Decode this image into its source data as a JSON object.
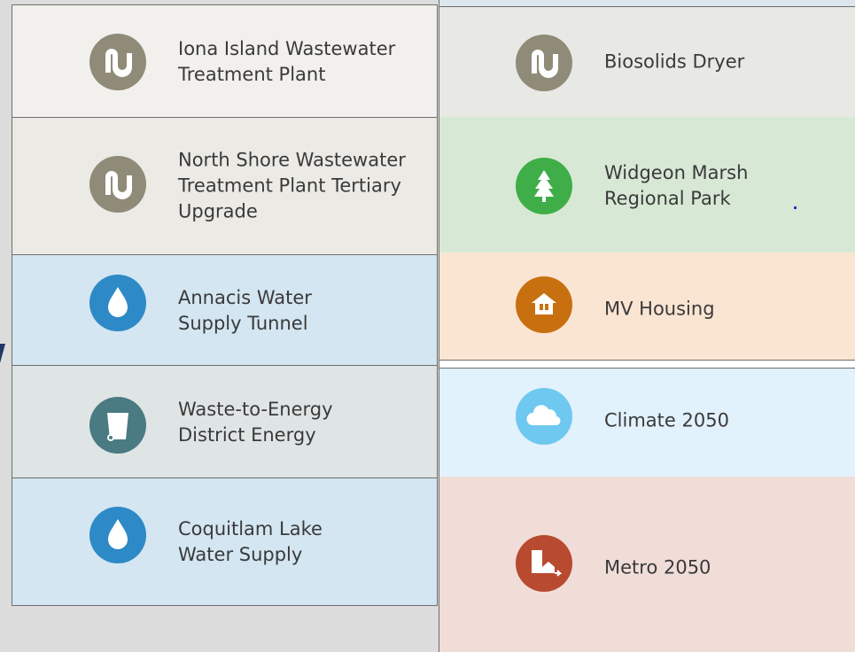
{
  "tiles_left": [
    {
      "lines": [
        "Iona Island Wastewater",
        "Treatment Plant"
      ]
    },
    {
      "lines": [
        "North Shore Wastewater",
        "Treatment Plant Tertiary",
        "Upgrade"
      ]
    },
    {
      "lines": [
        "Annacis Water",
        "Supply Tunnel"
      ]
    },
    {
      "lines": [
        "Waste-to-Energy",
        "District Energy"
      ]
    },
    {
      "lines": [
        "Coquitlam Lake",
        "Water Supply"
      ]
    }
  ],
  "tiles_right": [
    {
      "lines": [
        "Biosolids Dryer"
      ]
    },
    {
      "lines": [
        "Widgeon Marsh",
        "Regional Park"
      ]
    },
    {
      "lines": [
        "MV Housing"
      ]
    },
    {
      "lines": [
        "Climate 2050"
      ]
    },
    {
      "lines": [
        "Metro 2050"
      ]
    }
  ]
}
